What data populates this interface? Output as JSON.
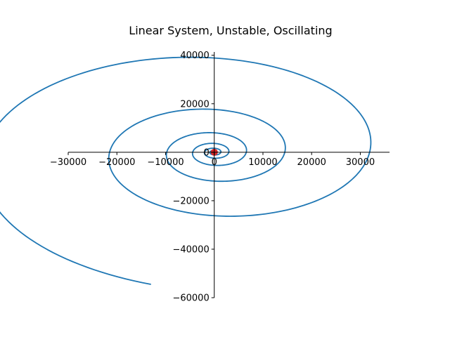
{
  "chart_data": {
    "type": "line",
    "title": "Linear System, Unstable, Oscillating",
    "xlabel": "",
    "ylabel": "",
    "xlim": [
      -30000,
      36000
    ],
    "ylim": [
      -60000,
      46000
    ],
    "x_ticks": [
      -30000,
      -20000,
      -10000,
      0,
      10000,
      20000,
      30000
    ],
    "y_ticks": [
      -60000,
      -40000,
      -20000,
      0,
      20000,
      40000
    ],
    "x_tick_labels": [
      "−30000",
      "−20000",
      "−10000",
      "0",
      "10000",
      "20000",
      "30000"
    ],
    "y_tick_labels": [
      "−60000",
      "−40000",
      "−20000",
      "0",
      "20000",
      "40000"
    ],
    "axes_style": "spines through origin",
    "grid": false,
    "series": [
      {
        "color": "#1f77b4",
        "spiral": {
          "start": [
            -13000,
            -54500
          ],
          "end": [
            0,
            0
          ],
          "turns": 7.5,
          "direction": "counter-clockwise outward"
        }
      }
    ],
    "markers": [
      {
        "x": 0,
        "y": 0,
        "color": "#d62728"
      }
    ]
  }
}
